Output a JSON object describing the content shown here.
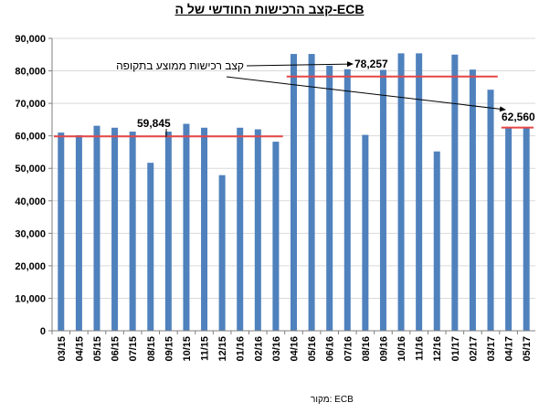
{
  "title": "קצב הרכישות החודשי של ה-ECB",
  "source": "מקור: ECB",
  "colors": {
    "bars": "#4F81BD",
    "avg_line": "#E64646",
    "axis": "#7F7F7F",
    "grid": "#D9D9D9",
    "arrow": "#000000"
  },
  "chart_data": {
    "type": "bar",
    "title": "קצב הרכישות החודשי של ה-ECB",
    "xlabel": "",
    "ylabel": "",
    "ylim": [
      0,
      90000
    ],
    "yticks": [
      "0",
      "10,000",
      "20,000",
      "30,000",
      "40,000",
      "50,000",
      "60,000",
      "70,000",
      "80,000",
      "90,000"
    ],
    "grid": true,
    "categories": [
      "03/15",
      "04/15",
      "05/15",
      "06/15",
      "07/15",
      "08/15",
      "09/15",
      "10/15",
      "11/15",
      "12/15",
      "01/16",
      "02/16",
      "03/16",
      "04/16",
      "05/16",
      "06/16",
      "07/16",
      "08/16",
      "09/16",
      "10/16",
      "11/16",
      "12/16",
      "01/17",
      "02/17",
      "03/17",
      "04/17",
      "05/17"
    ],
    "values": [
      61000,
      60200,
      63100,
      62500,
      61300,
      51700,
      61300,
      63700,
      62500,
      47900,
      62500,
      62000,
      58200,
      85200,
      85200,
      81600,
      80500,
      60300,
      80300,
      85400,
      85400,
      55200,
      85000,
      80400,
      74200,
      62600,
      62500
    ],
    "averages": [
      {
        "from": "03/15",
        "to": "03/16",
        "value": 59845,
        "label": "59,845"
      },
      {
        "from": "04/16",
        "to": "03/17",
        "value": 78257,
        "label": "78,257"
      },
      {
        "from": "04/17",
        "to": "05/17",
        "value": 62560,
        "label": "62,560"
      }
    ],
    "annotation": "קצב רכישות ממוצע בתקופה"
  }
}
